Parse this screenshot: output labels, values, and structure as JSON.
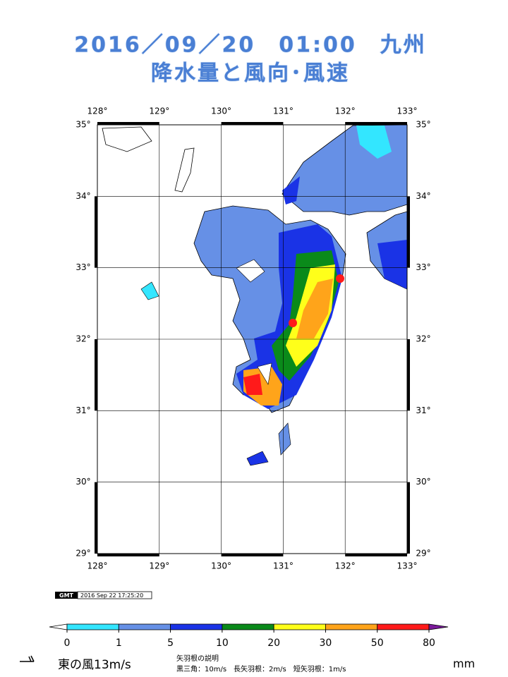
{
  "title": {
    "line1": "2016／09／20　01:00　九州",
    "line2": "降水量と風向･風速"
  },
  "map": {
    "lonticks": [
      {
        "value": 128,
        "label": "128°"
      },
      {
        "value": 129,
        "label": "129°"
      },
      {
        "value": 130,
        "label": "130°"
      },
      {
        "value": 131,
        "label": "131°"
      },
      {
        "value": 132,
        "label": "132°"
      },
      {
        "value": 133,
        "label": "133°"
      }
    ],
    "latticks": [
      {
        "value": 35,
        "label": "35°"
      },
      {
        "value": 34,
        "label": "34°"
      },
      {
        "value": 33,
        "label": "33°"
      },
      {
        "value": 32,
        "label": "32°"
      },
      {
        "value": 31,
        "label": "31°"
      },
      {
        "value": 30,
        "label": "30°"
      },
      {
        "value": 29,
        "label": "29°"
      }
    ],
    "lonlim": [
      128,
      133
    ],
    "latlim": [
      29,
      35
    ]
  },
  "stamp": {
    "logo": "GMT",
    "time": "2016 Sep 22 17:25:20"
  },
  "colorbar": {
    "ticks": [
      0,
      1,
      5,
      10,
      20,
      30,
      50,
      80
    ],
    "colors": [
      "#33e6ff",
      "#6690e6",
      "#1a33e6",
      "#0a8a1a",
      "#ffff1a",
      "#ffa41a",
      "#ff1a1a"
    ],
    "over_color": "#7a1a9a",
    "unit": "mm"
  },
  "legend": {
    "sample": "東の風13m/s",
    "heading": "矢羽根の説明",
    "detail": "黒三角：10m/s　長矢羽根：2m/s　短矢羽根：1m/s"
  }
}
